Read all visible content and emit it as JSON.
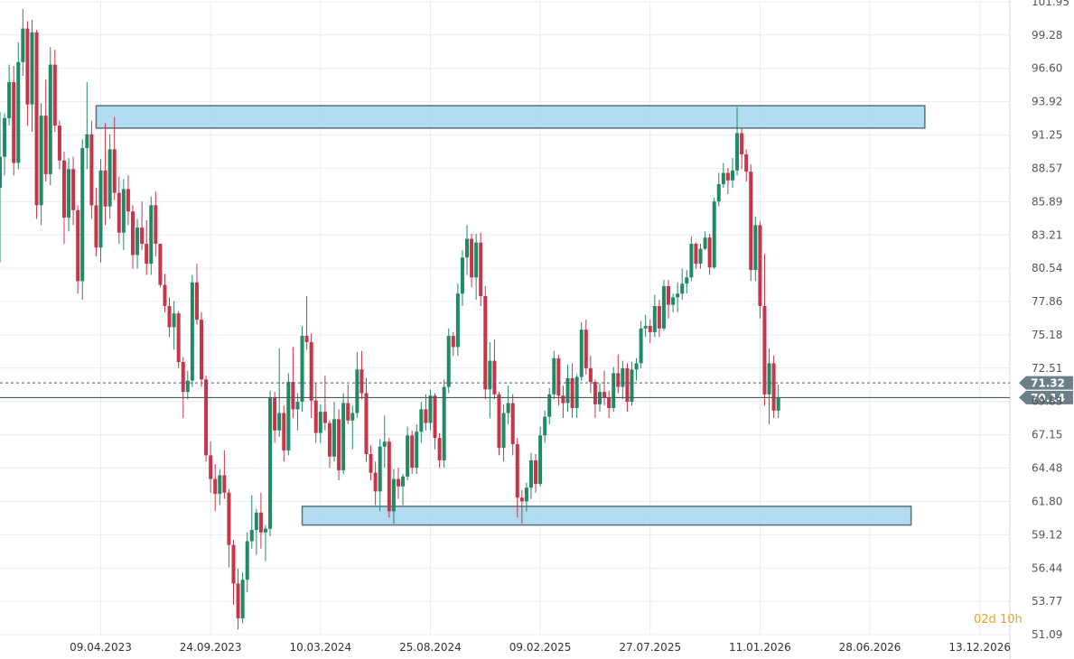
{
  "countdown": {
    "days": "02",
    "day_unit": "d",
    "hours": "10",
    "hour_unit": "h"
  },
  "colors": {
    "up": "#1f8a63",
    "down": "#c7354b",
    "zone_fill": "#a8d8f0",
    "zone_stroke": "#5a6f78",
    "current_tag": "#6b7f88",
    "grid": "#ececec",
    "price_line": "#4a5a62"
  },
  "chart_data": {
    "type": "candlestick",
    "title": "",
    "xlabel": "",
    "ylabel": "",
    "ylim": [
      51.09,
      101.95
    ],
    "y_ticks": [
      101.95,
      99.28,
      96.6,
      93.92,
      91.25,
      88.57,
      85.89,
      83.21,
      80.54,
      77.86,
      75.18,
      72.51,
      69.83,
      67.15,
      64.48,
      61.8,
      59.12,
      56.44,
      53.77,
      51.09
    ],
    "y_tick_labels": [
      "101.95",
      "99.28",
      "96.60",
      "93.92",
      "91.25",
      "88.57",
      "85.89",
      "83.21",
      "80.54",
      "77.86",
      "75.18",
      "72.51",
      "69.83",
      "67.15",
      "64.48",
      "61.80",
      "59.12",
      "56.44",
      "53.77",
      "51.09"
    ],
    "x_ticks": [
      "2023-04-09",
      "2023-09-24",
      "2024-03-10",
      "2024-08-25",
      "2025-02-09",
      "2025-07-27",
      "2026-01-11",
      "2026-06-28",
      "2026-12-13"
    ],
    "x_tick_labels": [
      "09.04.2023",
      "24.09.2023",
      "10.03.2024",
      "25.08.2024",
      "09.02.2025",
      "27.07.2025",
      "11.01.2026",
      "28.06.2026",
      "13.12.2026"
    ],
    "xlim": [
      "2022-11-06",
      "2027-01-28"
    ],
    "price_levels": [
      {
        "value": 71.32,
        "label": "71.32",
        "style": "dashed"
      },
      {
        "value": 70.14,
        "label": "70.14",
        "style": "solid"
      }
    ],
    "zones": [
      {
        "from_date": "2023-04-02",
        "to_date": "2026-09-20",
        "low": 91.8,
        "high": 93.6
      },
      {
        "from_date": "2024-02-11",
        "to_date": "2026-08-30",
        "low": 59.9,
        "high": 61.4
      }
    ],
    "start_date": "2022-11-06",
    "candle_interval_days": 7,
    "candles": [
      [
        87.0,
        93.1,
        81.0,
        89.5
      ],
      [
        89.5,
        93.0,
        88.0,
        92.6
      ],
      [
        92.6,
        96.9,
        92.0,
        95.5
      ],
      [
        95.5,
        96.8,
        88.0,
        89.0
      ],
      [
        89.0,
        98.7,
        88.5,
        97.1
      ],
      [
        97.1,
        101.4,
        96.0,
        99.8
      ],
      [
        99.8,
        100.4,
        92.0,
        93.7
      ],
      [
        93.7,
        100.5,
        91.5,
        99.5
      ],
      [
        99.5,
        99.7,
        84.5,
        85.6
      ],
      [
        85.6,
        93.8,
        84.0,
        92.8
      ],
      [
        92.8,
        95.7,
        87.5,
        88.1
      ],
      [
        88.1,
        98.3,
        87.2,
        96.9
      ],
      [
        96.9,
        98.1,
        91.5,
        92.0
      ],
      [
        92.0,
        92.4,
        88.5,
        89.2
      ],
      [
        89.2,
        89.9,
        82.5,
        84.6
      ],
      [
        84.6,
        89.4,
        83.5,
        88.5
      ],
      [
        88.5,
        89.5,
        84.0,
        85.2
      ],
      [
        85.2,
        85.6,
        78.5,
        79.5
      ],
      [
        79.5,
        90.9,
        78.0,
        90.2
      ],
      [
        90.2,
        95.5,
        88.5,
        91.3
      ],
      [
        91.3,
        92.4,
        84.5,
        85.6
      ],
      [
        85.6,
        87.0,
        81.5,
        82.2
      ],
      [
        82.2,
        89.3,
        81.0,
        88.4
      ],
      [
        88.4,
        92.2,
        84.0,
        85.5
      ],
      [
        85.5,
        91.3,
        84.5,
        90.1
      ],
      [
        90.1,
        92.7,
        86.0,
        86.6
      ],
      [
        86.6,
        87.9,
        82.5,
        83.4
      ],
      [
        83.4,
        87.7,
        82.0,
        86.9
      ],
      [
        86.9,
        88.0,
        84.0,
        85.1
      ],
      [
        85.1,
        85.6,
        80.5,
        81.6
      ],
      [
        81.6,
        84.5,
        80.5,
        83.8
      ],
      [
        83.8,
        85.9,
        82.0,
        82.5
      ],
      [
        82.5,
        84.4,
        80.0,
        80.9
      ],
      [
        80.9,
        86.3,
        80.0,
        85.6
      ],
      [
        85.6,
        86.7,
        81.5,
        82.5
      ],
      [
        82.5,
        82.5,
        79.0,
        79.2
      ],
      [
        79.2,
        80.1,
        77.0,
        77.5
      ],
      [
        77.5,
        78.2,
        75.0,
        75.8
      ],
      [
        75.8,
        77.9,
        74.0,
        76.9
      ],
      [
        76.9,
        77.1,
        72.5,
        73.0
      ],
      [
        73.0,
        73.4,
        68.5,
        70.6
      ],
      [
        70.6,
        72.3,
        70.0,
        71.5
      ],
      [
        71.5,
        80.0,
        71.0,
        79.4
      ],
      [
        79.4,
        80.9,
        76.0,
        76.4
      ],
      [
        76.4,
        77.0,
        71.0,
        71.6
      ],
      [
        71.6,
        71.9,
        65.0,
        65.5
      ],
      [
        65.5,
        66.6,
        62.5,
        63.6
      ],
      [
        63.6,
        64.8,
        61.0,
        62.4
      ],
      [
        62.4,
        64.4,
        61.5,
        63.9
      ],
      [
        63.9,
        65.9,
        62.0,
        62.5
      ],
      [
        62.5,
        62.8,
        56.5,
        58.3
      ],
      [
        58.3,
        58.7,
        53.5,
        55.2
      ],
      [
        55.2,
        56.4,
        51.5,
        52.4
      ],
      [
        52.4,
        56.1,
        52.0,
        55.5
      ],
      [
        55.5,
        59.3,
        54.5,
        58.6
      ],
      [
        58.6,
        62.3,
        58.0,
        59.5
      ],
      [
        59.5,
        61.2,
        57.5,
        60.9
      ],
      [
        60.9,
        62.5,
        58.0,
        59.3
      ],
      [
        59.3,
        59.9,
        57.0,
        59.6
      ],
      [
        59.6,
        70.7,
        59.0,
        70.1
      ],
      [
        70.1,
        70.6,
        66.5,
        67.5
      ],
      [
        67.5,
        74.1,
        67.0,
        68.9
      ],
      [
        68.9,
        69.5,
        65.0,
        65.9
      ],
      [
        65.9,
        72.1,
        65.5,
        71.4
      ],
      [
        71.4,
        74.2,
        68.5,
        69.2
      ],
      [
        69.2,
        70.5,
        67.5,
        69.8
      ],
      [
        69.8,
        75.9,
        69.0,
        75.1
      ],
      [
        75.1,
        78.3,
        74.0,
        74.6
      ],
      [
        74.6,
        75.3,
        68.5,
        69.9
      ],
      [
        69.9,
        71.3,
        66.5,
        67.3
      ],
      [
        67.3,
        69.6,
        66.5,
        69.0
      ],
      [
        69.0,
        71.9,
        67.5,
        68.1
      ],
      [
        68.1,
        68.3,
        64.5,
        65.4
      ],
      [
        65.4,
        69.8,
        65.0,
        68.4
      ],
      [
        68.4,
        69.2,
        63.5,
        64.3
      ],
      [
        64.3,
        70.5,
        64.0,
        69.7
      ],
      [
        69.7,
        71.2,
        68.0,
        68.3
      ],
      [
        68.3,
        69.5,
        66.0,
        68.9
      ],
      [
        68.9,
        73.8,
        68.5,
        72.4
      ],
      [
        72.4,
        73.9,
        70.0,
        70.5
      ],
      [
        70.5,
        71.7,
        65.0,
        65.6
      ],
      [
        65.6,
        66.3,
        63.5,
        64.1
      ],
      [
        64.1,
        65.0,
        61.5,
        62.6
      ],
      [
        62.6,
        66.8,
        61.0,
        66.2
      ],
      [
        66.2,
        68.7,
        64.5,
        66.6
      ],
      [
        66.6,
        66.9,
        60.5,
        61.0
      ],
      [
        61.0,
        64.4,
        60.0,
        63.6
      ],
      [
        63.6,
        64.5,
        62.0,
        63.0
      ],
      [
        63.0,
        64.0,
        61.5,
        63.8
      ],
      [
        63.8,
        67.8,
        63.5,
        67.1
      ],
      [
        67.1,
        67.5,
        64.0,
        64.5
      ],
      [
        64.5,
        68.0,
        64.0,
        67.4
      ],
      [
        67.4,
        69.8,
        66.5,
        69.2
      ],
      [
        69.2,
        70.4,
        67.5,
        68.1
      ],
      [
        68.1,
        70.8,
        67.5,
        70.3
      ],
      [
        70.3,
        70.5,
        66.0,
        66.9
      ],
      [
        66.9,
        67.3,
        64.5,
        65.1
      ],
      [
        65.1,
        71.6,
        64.5,
        71.0
      ],
      [
        71.0,
        75.7,
        70.5,
        75.1
      ],
      [
        75.1,
        75.4,
        73.5,
        74.2
      ],
      [
        74.2,
        79.3,
        73.5,
        78.5
      ],
      [
        78.5,
        82.0,
        77.5,
        81.4
      ],
      [
        81.4,
        84.0,
        80.0,
        82.9
      ],
      [
        82.9,
        83.3,
        79.0,
        79.8
      ],
      [
        79.8,
        83.3,
        78.0,
        82.6
      ],
      [
        82.6,
        83.4,
        77.5,
        78.3
      ],
      [
        78.3,
        79.1,
        70.0,
        70.8
      ],
      [
        70.8,
        74.6,
        68.5,
        73.1
      ],
      [
        73.1,
        74.8,
        70.0,
        70.4
      ],
      [
        70.4,
        70.6,
        65.5,
        66.1
      ],
      [
        66.1,
        69.6,
        65.0,
        68.9
      ],
      [
        68.9,
        71.1,
        68.0,
        69.7
      ],
      [
        69.7,
        70.4,
        65.5,
        66.4
      ],
      [
        66.4,
        66.9,
        60.5,
        62.1
      ],
      [
        62.1,
        62.7,
        60.0,
        61.8
      ],
      [
        61.8,
        63.3,
        61.0,
        62.9
      ],
      [
        62.9,
        65.7,
        62.0,
        65.1
      ],
      [
        65.1,
        65.6,
        62.5,
        63.2
      ],
      [
        63.2,
        67.8,
        63.0,
        67.1
      ],
      [
        67.1,
        69.1,
        66.5,
        68.6
      ],
      [
        68.6,
        70.9,
        68.0,
        70.4
      ],
      [
        70.4,
        73.9,
        70.0,
        73.3
      ],
      [
        73.3,
        73.6,
        69.5,
        70.3
      ],
      [
        70.3,
        71.1,
        68.5,
        69.7
      ],
      [
        69.7,
        72.8,
        69.0,
        71.7
      ],
      [
        71.7,
        72.9,
        68.5,
        69.3
      ],
      [
        69.3,
        72.0,
        68.5,
        71.8
      ],
      [
        71.8,
        76.2,
        71.5,
        75.6
      ],
      [
        75.6,
        76.4,
        72.0,
        72.5
      ],
      [
        72.5,
        73.5,
        70.5,
        71.4
      ],
      [
        71.4,
        71.6,
        68.5,
        69.6
      ],
      [
        69.6,
        71.3,
        69.0,
        70.6
      ],
      [
        70.6,
        72.3,
        69.5,
        70.1
      ],
      [
        70.1,
        70.7,
        68.5,
        69.3
      ],
      [
        69.3,
        72.6,
        69.0,
        72.1
      ],
      [
        72.1,
        73.6,
        70.5,
        71.0
      ],
      [
        71.0,
        73.1,
        70.0,
        72.5
      ],
      [
        72.5,
        72.9,
        69.0,
        69.8
      ],
      [
        69.8,
        73.0,
        69.5,
        72.4
      ],
      [
        72.4,
        73.3,
        71.5,
        72.9
      ],
      [
        72.9,
        76.3,
        72.5,
        75.7
      ],
      [
        75.7,
        76.8,
        75.0,
        75.9
      ],
      [
        75.9,
        76.4,
        74.5,
        75.4
      ],
      [
        75.4,
        78.4,
        75.0,
        77.5
      ],
      [
        77.5,
        78.0,
        75.0,
        75.7
      ],
      [
        75.7,
        79.6,
        75.5,
        79.1
      ],
      [
        79.1,
        79.6,
        76.5,
        77.6
      ],
      [
        77.6,
        78.5,
        77.0,
        78.2
      ],
      [
        78.2,
        79.4,
        77.0,
        78.5
      ],
      [
        78.5,
        80.5,
        78.0,
        79.3
      ],
      [
        79.3,
        80.4,
        78.5,
        79.8
      ],
      [
        79.8,
        83.1,
        79.5,
        82.5
      ],
      [
        82.5,
        82.6,
        80.5,
        80.9
      ],
      [
        80.9,
        82.5,
        80.5,
        82.1
      ],
      [
        82.1,
        83.5,
        82.0,
        83.0
      ],
      [
        83.0,
        83.3,
        80.0,
        80.6
      ],
      [
        80.6,
        86.2,
        80.5,
        85.9
      ],
      [
        85.9,
        88.2,
        85.5,
        87.3
      ],
      [
        87.3,
        89.0,
        87.0,
        88.2
      ],
      [
        88.2,
        88.6,
        86.5,
        87.6
      ],
      [
        87.6,
        89.4,
        87.0,
        88.4
      ],
      [
        88.4,
        93.5,
        88.0,
        91.4
      ],
      [
        91.4,
        91.8,
        88.5,
        89.7
      ],
      [
        89.7,
        90.1,
        87.5,
        88.3
      ],
      [
        88.3,
        88.9,
        79.5,
        80.4
      ],
      [
        80.4,
        84.7,
        79.5,
        84.0
      ],
      [
        84.0,
        84.3,
        76.5,
        77.5
      ],
      [
        77.5,
        81.7,
        69.5,
        70.4
      ],
      [
        70.4,
        74.1,
        68.0,
        72.9
      ],
      [
        72.9,
        73.5,
        68.5,
        69.1
      ],
      [
        69.1,
        71.2,
        68.5,
        70.14
      ]
    ]
  }
}
